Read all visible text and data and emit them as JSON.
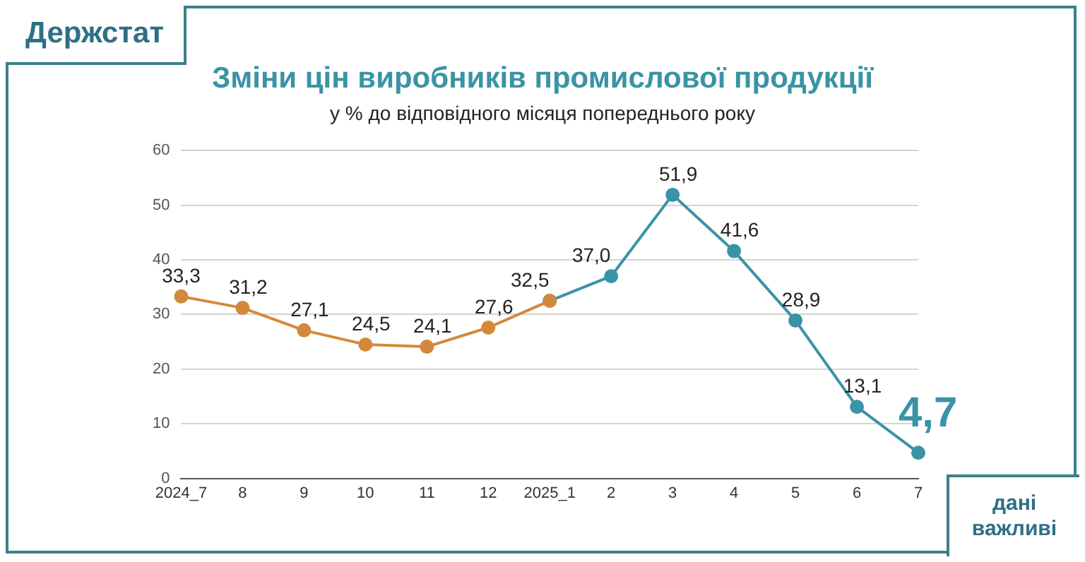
{
  "chart_data": {
    "type": "line",
    "title": "Зміни цін виробників промислової продукції",
    "subtitle": "у % до відповідного місяця попереднього року",
    "annotations": [
      "Держстат",
      "дані важливі"
    ],
    "categories": [
      "2024_7",
      "8",
      "9",
      "10",
      "11",
      "12",
      "2025_1",
      "2",
      "3",
      "4",
      "5",
      "6",
      "7"
    ],
    "series": [
      {
        "color": "#d4893a",
        "values": [
          33.3,
          31.2,
          27.1,
          24.5,
          24.1,
          27.6,
          32.5,
          null,
          null,
          null,
          null,
          null,
          null
        ],
        "value_labels": [
          "33,3",
          "31,2",
          "27,1",
          "24,5",
          "24,1",
          "27,6",
          null,
          null,
          null,
          null,
          null,
          null,
          null
        ]
      },
      {
        "color": "#3a93a6",
        "values": [
          null,
          null,
          null,
          null,
          null,
          null,
          32.5,
          37.0,
          51.9,
          41.6,
          28.9,
          13.1,
          4.7
        ],
        "value_labels": [
          null,
          null,
          null,
          null,
          null,
          null,
          "32,5",
          "37,0",
          "51,9",
          "41,6",
          "28,9",
          "13,1",
          "4,7"
        ]
      }
    ],
    "ylim": [
      0,
      60
    ],
    "yticks": [
      0,
      10,
      20,
      30,
      40,
      50,
      60
    ],
    "grid": "y",
    "legend": false,
    "marker": "circle",
    "line_style": "solid"
  }
}
